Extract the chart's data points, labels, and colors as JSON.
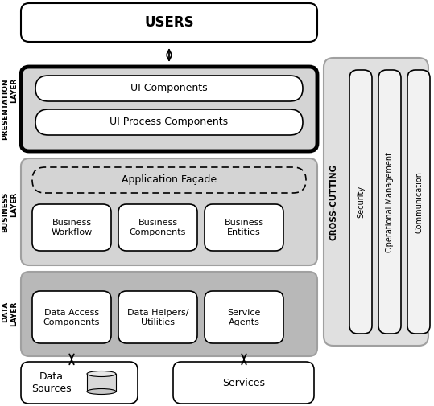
{
  "bg_color": "#ffffff",
  "title": "USERS",
  "presentation_label": "PRESENTATION\nLAYER",
  "business_label": "BUSINESS\nLAYER",
  "data_label": "DATA\nLAYER",
  "cross_label": "CROSS-CUTTING",
  "ui_components": "UI Components",
  "ui_process": "UI Process Components",
  "app_facade": "Application Façade",
  "biz_workflow": "Business\nWorkflow",
  "biz_components": "Business\nComponents",
  "biz_entities": "Business\nEntities",
  "data_access": "Data Access\nComponents",
  "data_helpers": "Data Helpers/\nUtilities",
  "service_agents": "Service\nAgents",
  "data_sources": "Data\nSources",
  "services": "Services",
  "security": "Security",
  "op_mgmt": "Operational Management",
  "communication": "Communication",
  "light_gray": "#d4d4d4",
  "medium_gray": "#b8b8b8",
  "dark_gray": "#a0a0a0",
  "black": "#000000",
  "white": "#ffffff",
  "near_white": "#f2f2f2",
  "panel_gray": "#e0e0e0"
}
